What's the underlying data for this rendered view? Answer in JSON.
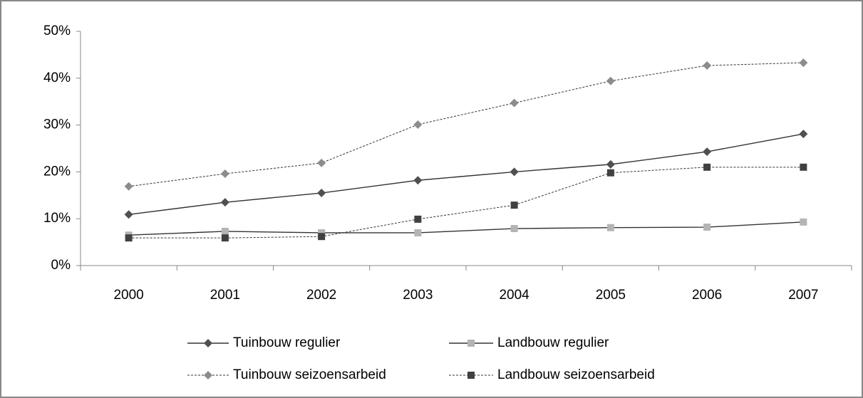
{
  "chart_data": {
    "type": "line",
    "categories": [
      "2000",
      "2001",
      "2002",
      "2003",
      "2004",
      "2005",
      "2006",
      "2007"
    ],
    "series": [
      {
        "name": "Tuinbouw regulier",
        "color": "#505050",
        "marker": "diamond",
        "dash": "solid",
        "values": [
          10.9,
          13.5,
          15.5,
          18.2,
          20,
          21.6,
          24.3,
          28.1
        ]
      },
      {
        "name": "Landbouw regulier",
        "color": "#b4b4b4",
        "marker": "square",
        "dash": "solid",
        "values": [
          6.5,
          7.3,
          7.0,
          7.0,
          7.9,
          8.1,
          8.2,
          9.3
        ]
      },
      {
        "name": "Tuinbouw seizoensarbeid",
        "color": "#8c8c8c",
        "marker": "diamond",
        "dash": "dotted",
        "values": [
          16.9,
          19.6,
          21.9,
          30.1,
          34.7,
          39.4,
          42.7,
          43.3
        ]
      },
      {
        "name": "Landbouw seizoensarbeid",
        "color": "#404040",
        "marker": "square",
        "dash": "dotted",
        "values": [
          5.9,
          5.9,
          6.2,
          9.9,
          12.9,
          19.8,
          21,
          21
        ]
      }
    ],
    "ylim": [
      0,
      50
    ],
    "yticks": [
      {
        "value": 0,
        "label": "0%"
      },
      {
        "value": 10,
        "label": "10%"
      },
      {
        "value": 20,
        "label": "20%"
      },
      {
        "value": 30,
        "label": "30%"
      },
      {
        "value": 40,
        "label": "40%"
      },
      {
        "value": 50,
        "label": "50%"
      }
    ],
    "grid": false,
    "legend": "bottom"
  }
}
